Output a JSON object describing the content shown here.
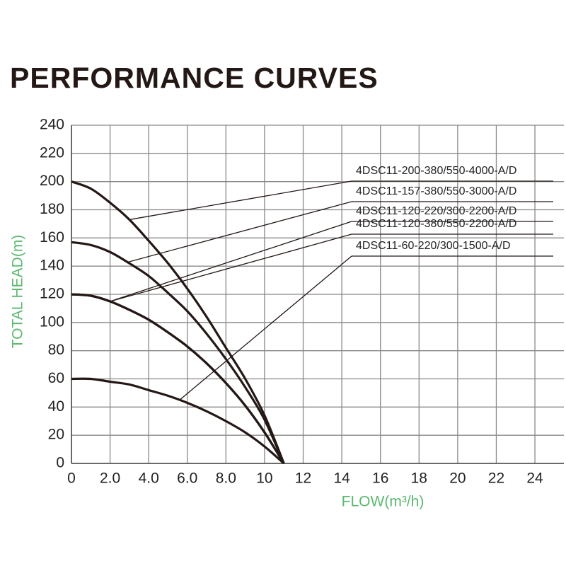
{
  "chart_data": {
    "type": "line",
    "title": "PERFORMANCE CURVES",
    "x_label": "FLOW(m³/h)",
    "y_label": "TOTAL HEAD(m)",
    "x": [
      0,
      1,
      2,
      3,
      4,
      5,
      6,
      7,
      8,
      9,
      10,
      11
    ],
    "series": [
      {
        "name": "4DSC11-200-380/550-4000-A/D",
        "color": "#231815",
        "values": [
          200,
          195,
          185,
          173,
          158,
          142,
          124,
          104,
          82,
          60,
          34,
          0
        ]
      },
      {
        "name": "4DSC11-157-380/550-3000-A/D",
        "color": "#231815",
        "values": [
          157,
          155,
          150,
          142,
          133,
          121,
          108,
          92,
          74,
          54,
          31,
          0
        ]
      },
      {
        "name": "4DSC11-120-220/300-2200-A/D",
        "color": "#231815",
        "values": [
          120,
          119,
          115,
          109,
          102,
          93,
          83,
          71,
          57,
          41,
          22,
          0
        ]
      },
      {
        "name": "4DSC11-120-380/550-2200-A/D",
        "color": "#231815",
        "values": [
          120,
          119,
          115,
          109,
          102,
          93,
          83,
          71,
          57,
          41,
          22,
          0
        ]
      },
      {
        "name": "4DSC11-60-220/300-1500-A/D",
        "color": "#231815",
        "values": [
          60,
          60,
          58,
          56,
          52,
          48,
          43,
          37,
          30,
          22,
          12,
          0
        ]
      }
    ],
    "xlim": [
      0,
      25.5
    ],
    "ylim": [
      0,
      240
    ],
    "xticks": [
      0,
      {
        "value": 2,
        "label": "2.0"
      },
      {
        "value": 4,
        "label": "4.0"
      },
      {
        "value": 6,
        "label": "6.0"
      },
      {
        "value": 8,
        "label": "8.0"
      },
      10,
      12,
      14,
      16,
      18,
      20,
      22,
      24
    ],
    "yticks": [
      0,
      20,
      40,
      60,
      80,
      100,
      120,
      140,
      160,
      180,
      200,
      220,
      240
    ],
    "grid": true,
    "axis_label_color": "#5bb870"
  }
}
